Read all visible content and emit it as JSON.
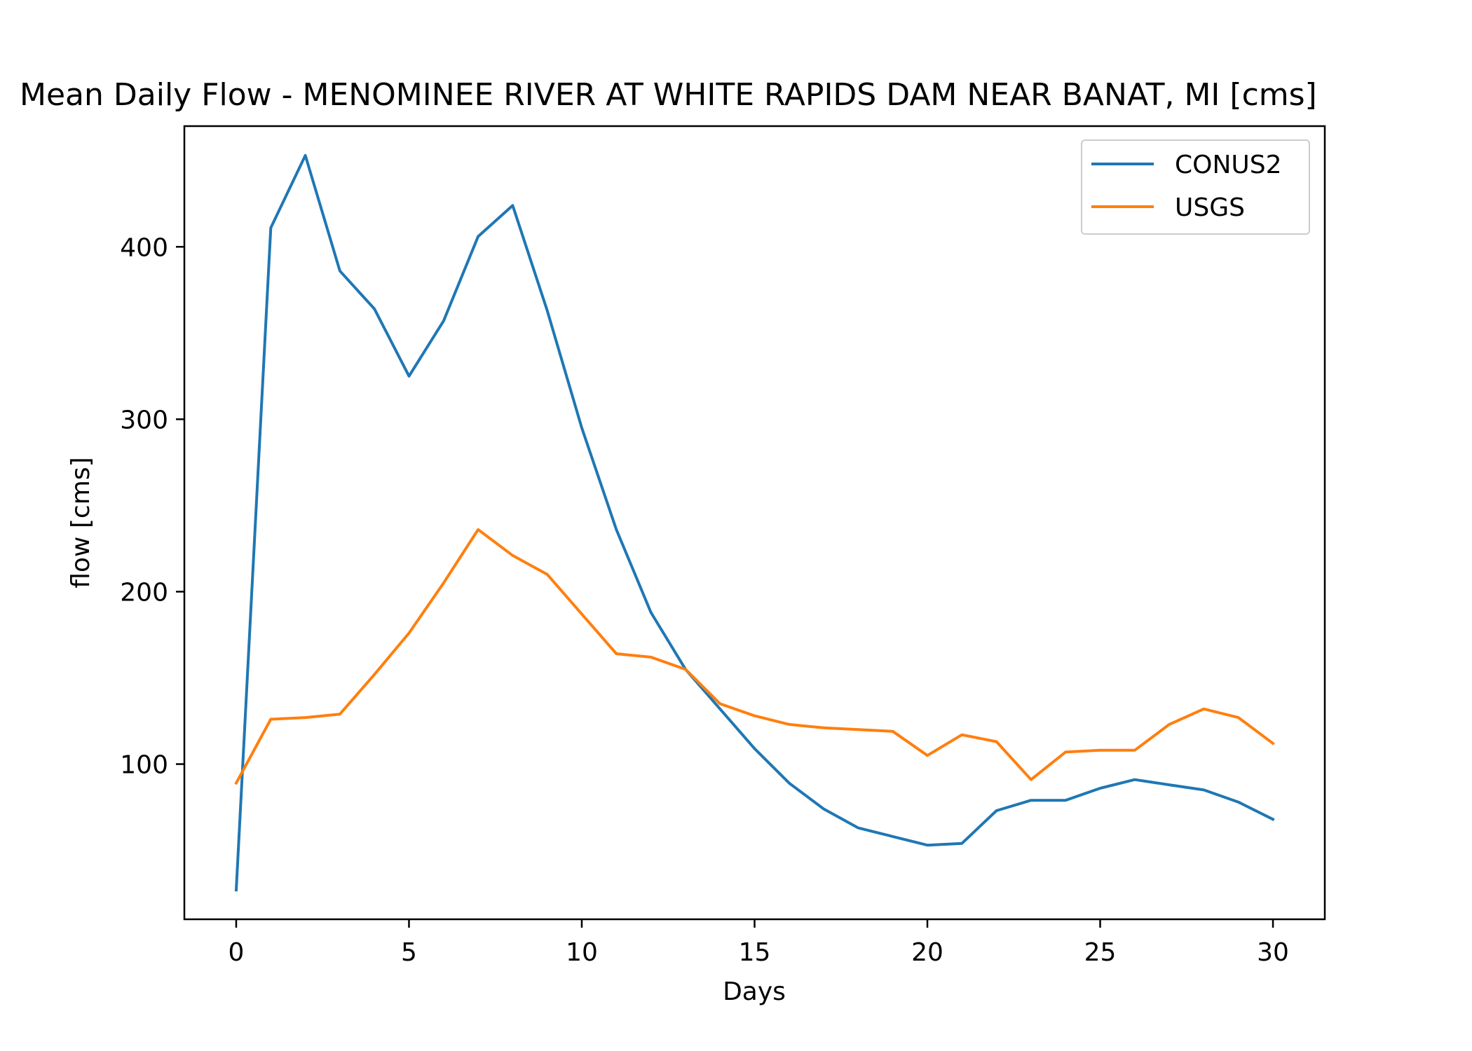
{
  "chart_data": {
    "type": "line",
    "title": "Mean Daily Flow - MENOMINEE RIVER AT WHITE RAPIDS DAM NEAR BANAT, MI [cms]",
    "xlabel": "Days",
    "ylabel": "flow [cms]",
    "xlim": [
      -1.5,
      31.5
    ],
    "ylim": [
      10,
      470
    ],
    "x_ticks": [
      0,
      5,
      10,
      15,
      20,
      25,
      30
    ],
    "y_ticks": [
      100,
      200,
      300,
      400
    ],
    "grid": false,
    "legend_position": "top-right",
    "x": [
      0,
      1,
      2,
      3,
      4,
      5,
      6,
      7,
      8,
      9,
      10,
      11,
      12,
      13,
      14,
      15,
      16,
      17,
      18,
      19,
      20,
      21,
      22,
      23,
      24,
      25,
      26,
      27,
      28,
      29,
      30
    ],
    "series": [
      {
        "name": "CONUS2",
        "color": "#1f77b4",
        "values": [
          27,
          411,
          453,
          386,
          364,
          325,
          357,
          406,
          424,
          363,
          295,
          236,
          188,
          155,
          132,
          109,
          89,
          74,
          63,
          58,
          53,
          54,
          73,
          79,
          79,
          86,
          91,
          88,
          85,
          78,
          68
        ]
      },
      {
        "name": "USGS",
        "color": "#ff7f0e",
        "values": [
          89,
          126,
          127,
          129,
          152,
          176,
          205,
          236,
          221,
          210,
          187,
          164,
          162,
          155,
          135,
          128,
          123,
          121,
          120,
          119,
          105,
          117,
          113,
          91,
          107,
          108,
          108,
          123,
          132,
          127,
          112
        ]
      }
    ]
  }
}
